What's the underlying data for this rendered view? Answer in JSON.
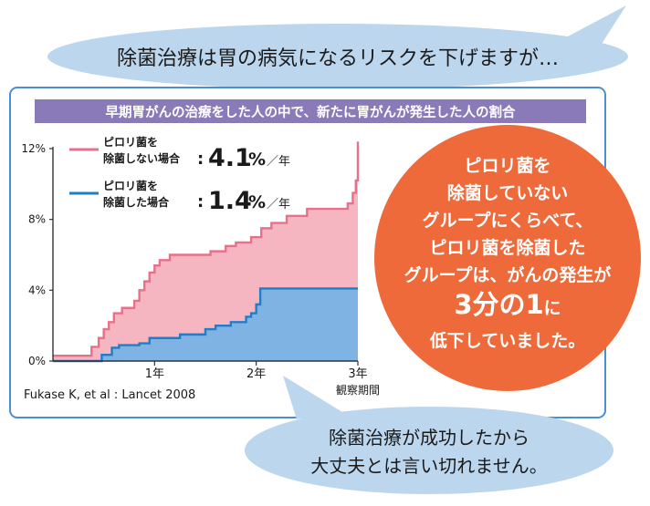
{
  "top_bubble": {
    "text": "除菌治療は胃の病気になるリスクを下げますが…"
  },
  "bottom_bubble": {
    "lines": [
      "除菌治療が成功したから",
      "大丈夫とは言い切れません。"
    ]
  },
  "circle": {
    "lines": [
      "ピロリ菌を",
      "除菌していない",
      "グループにくらべて、",
      "ピロリ菌を除菌した",
      "グループは、がんの発生が"
    ],
    "emph_main": "3分の1",
    "emph_suffix": "に",
    "last_line": "低下していました。"
  },
  "citation": "Fukase K, et al : Lancet 2008",
  "colors": {
    "not_eradicated_line": "#e8708a",
    "not_eradicated_fill": "#f5b6c2",
    "eradicated_line": "#1e7fc8",
    "eradicated_fill": "#7fb3e3",
    "header_band": "#8a7bb8",
    "circle": "#ee6a3a",
    "bubble": "#bcd6ee",
    "frame": "#4a8fd0"
  },
  "chart_data": {
    "type": "area",
    "title": "早期胃がんの治療をした人の中で、新たに胃がんが発生した人の割合",
    "xlabel": "観察期間",
    "ylabel": "",
    "xlim": [
      0,
      3
    ],
    "ylim": [
      0,
      12
    ],
    "xticks": [
      {
        "value": 1,
        "label": "1年"
      },
      {
        "value": 2,
        "label": "2年"
      },
      {
        "value": 3,
        "label": "3年"
      }
    ],
    "yticks": [
      {
        "value": 0,
        "label": "0%"
      },
      {
        "value": 4,
        "label": "4%"
      },
      {
        "value": 8,
        "label": "8%"
      },
      {
        "value": 12,
        "label": "12%"
      }
    ],
    "grid": false,
    "legend_position": "top-left",
    "series": [
      {
        "name_lines": [
          "ピロリ菌を",
          "除菌しない場合"
        ],
        "rate_prefix": ":",
        "rate_value": "4.1",
        "rate_unit": "%",
        "rate_per": "／年",
        "x": [
          0,
          0.38,
          0.45,
          0.5,
          0.55,
          0.6,
          0.68,
          0.8,
          0.85,
          0.9,
          0.95,
          1.0,
          1.05,
          1.15,
          1.35,
          1.55,
          1.7,
          1.8,
          1.95,
          2.05,
          2.15,
          2.3,
          2.5,
          2.9,
          2.95,
          2.98,
          3.0
        ],
        "y": [
          0.3,
          0.8,
          1.3,
          1.8,
          2.2,
          2.7,
          3.0,
          3.4,
          4.0,
          4.5,
          5.0,
          5.4,
          5.7,
          6.0,
          6.0,
          6.2,
          6.5,
          6.7,
          7.0,
          7.5,
          7.8,
          8.2,
          8.6,
          8.9,
          9.5,
          10.2,
          12.4
        ]
      },
      {
        "name_lines": [
          "ピロリ菌を",
          "除菌した場合"
        ],
        "rate_prefix": ":",
        "rate_value": "1.4",
        "rate_unit": "%",
        "rate_per": "／年",
        "x": [
          0,
          0.48,
          0.58,
          0.65,
          0.85,
          0.95,
          1.25,
          1.5,
          1.6,
          1.75,
          1.9,
          1.95,
          2.0,
          2.04,
          3.0
        ],
        "y": [
          0,
          0.35,
          0.75,
          0.9,
          1.0,
          1.3,
          1.5,
          1.8,
          2.0,
          2.2,
          2.5,
          2.7,
          3.2,
          4.1,
          4.1
        ]
      }
    ]
  }
}
